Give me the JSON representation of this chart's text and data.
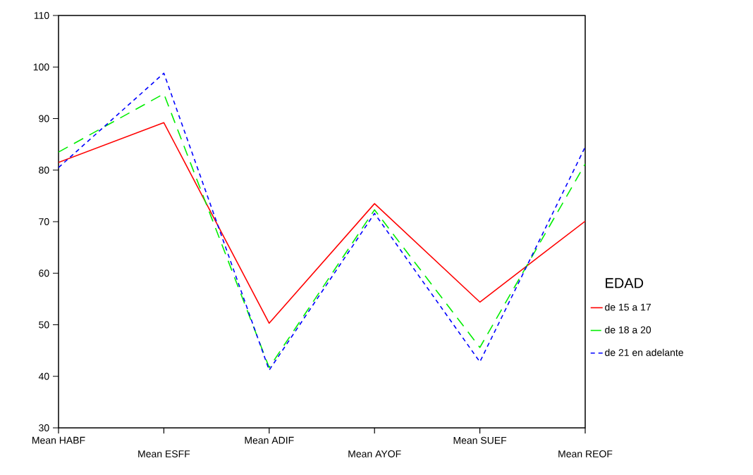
{
  "chart_data": {
    "type": "line",
    "categories": [
      "Mean HABF",
      "Mean ESFF",
      "Mean ADIF",
      "Mean AYOF",
      "Mean SUEF",
      "Mean REOF"
    ],
    "series": [
      {
        "name": "de 15 a 17",
        "color": "#ff0000",
        "line_style": "solid",
        "values": [
          81.5,
          89.2,
          50.3,
          73.5,
          54.4,
          70.1
        ]
      },
      {
        "name": "de 18 a 20",
        "color": "#00ee00",
        "line_style": "dashed",
        "values": [
          83.5,
          94.8,
          41.7,
          72.3,
          45.6,
          81.2
        ]
      },
      {
        "name": "de 21 en adelante",
        "color": "#0000ff",
        "line_style": "dotted",
        "values": [
          80.5,
          98.8,
          41.2,
          71.6,
          42.8,
          84.5
        ]
      }
    ],
    "legend_title": "EDAD",
    "legend": "right",
    "marker": "none",
    "grid": false,
    "ylim": [
      30,
      110
    ],
    "yticks": [
      30,
      40,
      50,
      60,
      70,
      80,
      90,
      100,
      110
    ]
  }
}
